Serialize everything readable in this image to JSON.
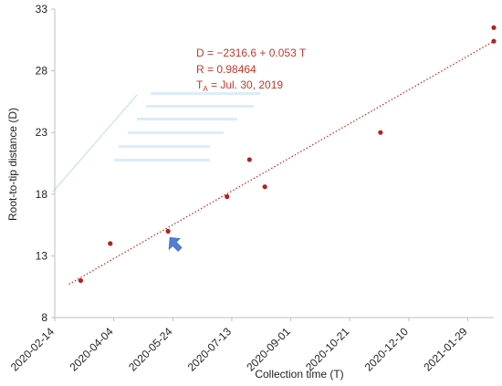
{
  "chart_data": {
    "type": "scatter",
    "xlabel": "Collection time (T)",
    "ylabel": "Root-to-tip distance (D)",
    "x_ticks": [
      "2020-02-14",
      "2020-04-04",
      "2020-05-24",
      "2020-07-13",
      "2020-09-01",
      "2020-10-21",
      "2020-12-10",
      "2021-01-29"
    ],
    "y_ticks": [
      8,
      13,
      18,
      23,
      28,
      33
    ],
    "xlim": [
      "2020-02-14",
      "2021-02-20"
    ],
    "ylim": [
      8,
      33
    ],
    "points": [
      {
        "x": "2020-03-07",
        "y": 11.0
      },
      {
        "x": "2020-04-01",
        "y": 14.0
      },
      {
        "x": "2020-05-20",
        "y": 15.0
      },
      {
        "x": "2020-07-09",
        "y": 17.8
      },
      {
        "x": "2020-07-28",
        "y": 20.8
      },
      {
        "x": "2020-08-10",
        "y": 18.6
      },
      {
        "x": "2020-11-16",
        "y": 23.0
      },
      {
        "x": "2021-02-20",
        "y": 31.5
      },
      {
        "x": "2021-02-20",
        "y": 30.4
      }
    ],
    "trendline": {
      "style": "dotted",
      "color": "#c0392b",
      "start": {
        "x": "2020-02-26",
        "y": 10.7
      },
      "end": {
        "x": "2021-02-20",
        "y": 30.4
      }
    },
    "annotation": {
      "line1": "D = −2316.6 + 0.053 T",
      "line2": "R = 0.98464",
      "line3_prefix": "T",
      "line3_sub": "A",
      "line3_rest": " = Jul. 30, 2019"
    },
    "highlight_arrow": {
      "x": "2020-05-20",
      "y": 15.0,
      "color": "#4f7fd6"
    },
    "colors": {
      "point": "#b22222",
      "trend": "#c0392b",
      "text": "#c0392b",
      "axis": "#bfbfbf",
      "tick": "#222222",
      "ghost": "#6fb3e6"
    }
  }
}
